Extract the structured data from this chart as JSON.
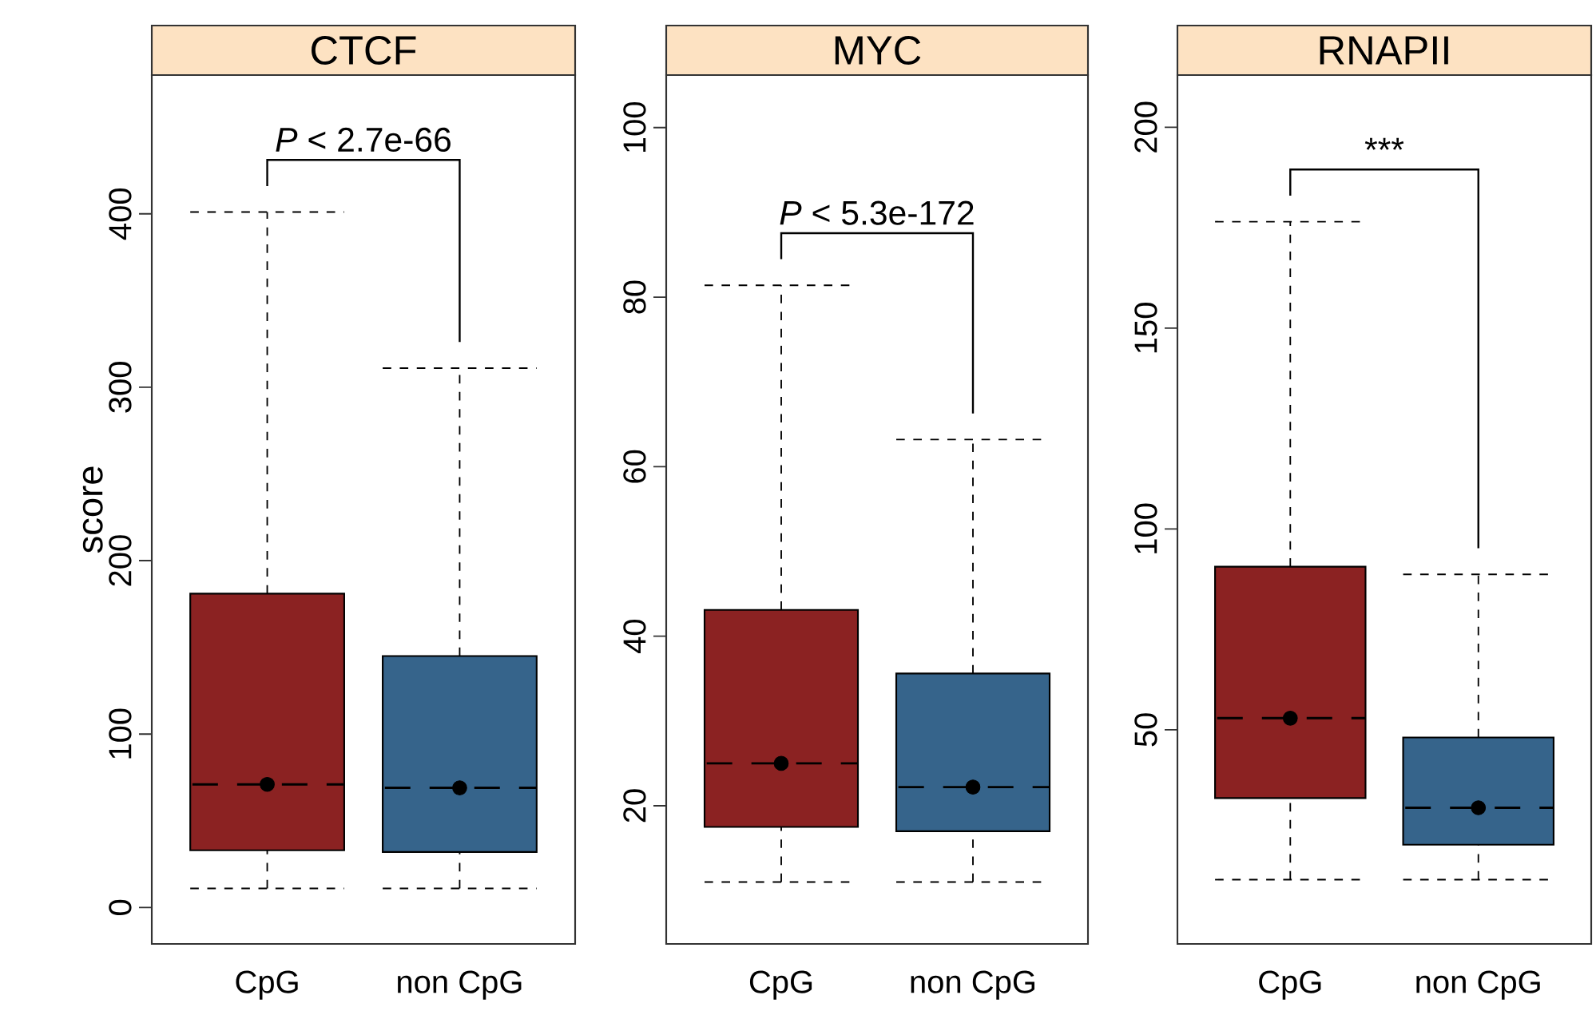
{
  "chart_data": [
    {
      "type": "box",
      "title": "CTCF",
      "ylabel": "score",
      "categories": [
        "CpG",
        "non CpG"
      ],
      "colors": [
        "#8b2222",
        "#36648b"
      ],
      "boxes": [
        {
          "low": 11,
          "q1": 33,
          "median": 71,
          "q3": 181,
          "high": 401,
          "mean": 71
        },
        {
          "low": 11,
          "q1": 32,
          "median": 69,
          "q3": 145,
          "high": 311,
          "mean": 69
        }
      ],
      "ylim": [
        -21,
        480
      ],
      "yticks": [
        0,
        100,
        200,
        300,
        400
      ],
      "annotations": [
        "*P* < 2.7e-66"
      ]
    },
    {
      "type": "box",
      "title": "MYC",
      "categories": [
        "CpG",
        "non CpG"
      ],
      "colors": [
        "#8b2222",
        "#36648b"
      ],
      "boxes": [
        {
          "low": 11.0,
          "q1": 17.5,
          "median": 25.0,
          "q3": 43.1,
          "high": 81.4,
          "mean": 25.0
        },
        {
          "low": 11.0,
          "q1": 17.0,
          "median": 22.2,
          "q3": 35.6,
          "high": 63.2,
          "mean": 22.2
        }
      ],
      "ylim": [
        3.7,
        106.2
      ],
      "yticks": [
        20,
        40,
        60,
        80,
        100
      ],
      "annotations": [
        "*P* < 5.3e-172"
      ]
    },
    {
      "type": "box",
      "title": "RNAPII",
      "categories": [
        "CpG",
        "non CpG"
      ],
      "colors": [
        "#8b2222",
        "#36648b"
      ],
      "boxes": [
        {
          "low": 12.7,
          "q1": 33.0,
          "median": 52.9,
          "q3": 90.6,
          "high": 176.5,
          "mean": 52.9
        },
        {
          "low": 12.7,
          "q1": 21.4,
          "median": 30.6,
          "q3": 48.1,
          "high": 88.7,
          "mean": 30.6
        }
      ],
      "ylim": [
        -3.3,
        213
      ],
      "yticks": [
        50,
        100,
        150,
        200
      ],
      "annotations": [
        "***"
      ]
    }
  ]
}
